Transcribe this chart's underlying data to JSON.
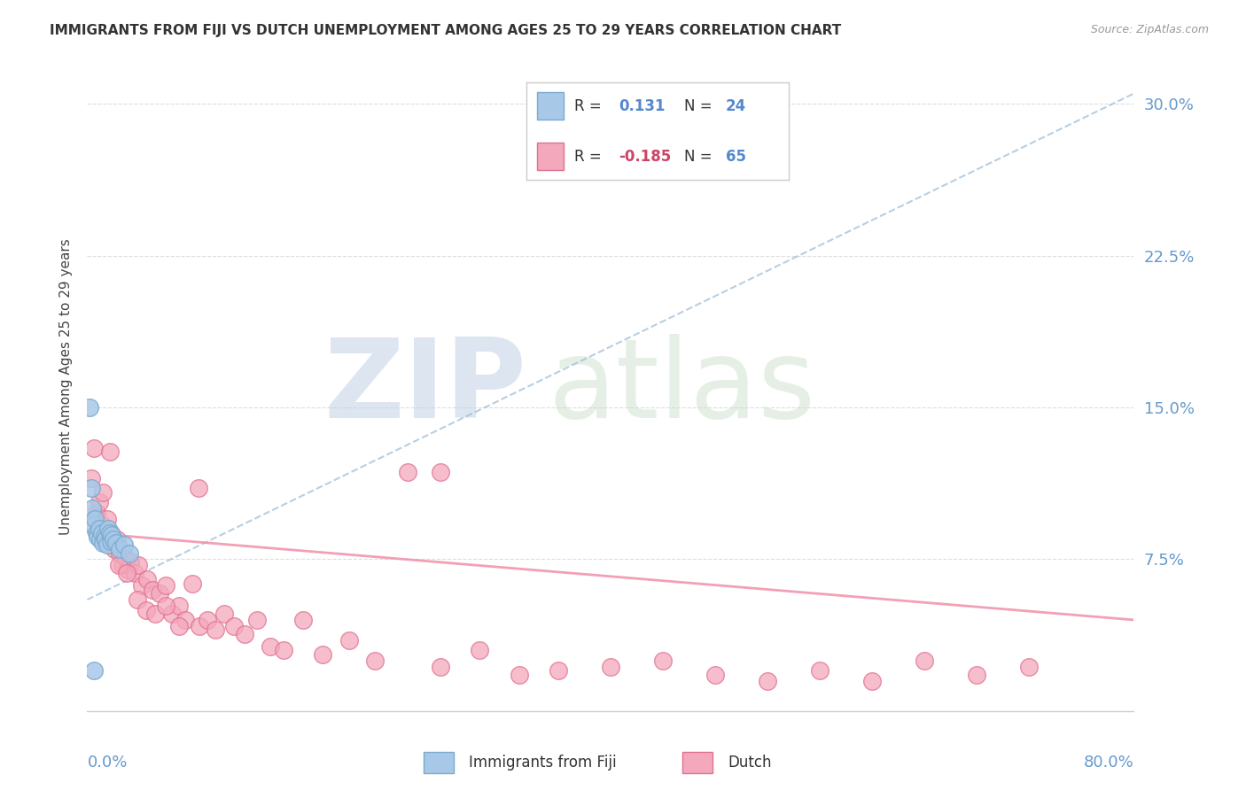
{
  "title": "IMMIGRANTS FROM FIJI VS DUTCH UNEMPLOYMENT AMONG AGES 25 TO 29 YEARS CORRELATION CHART",
  "source": "Source: ZipAtlas.com",
  "ylabel": "Unemployment Among Ages 25 to 29 years",
  "ytick_vals": [
    0.075,
    0.15,
    0.225,
    0.3
  ],
  "ytick_labels": [
    "7.5%",
    "15.0%",
    "22.5%",
    "30.0%"
  ],
  "xlim": [
    0.0,
    0.8
  ],
  "ylim": [
    0.0,
    0.32
  ],
  "fiji_color": "#a8c8e8",
  "fiji_edge_color": "#7aaace",
  "dutch_color": "#f4a8bc",
  "dutch_edge_color": "#e07090",
  "fiji_line_color": "#99bbd8",
  "dutch_line_color": "#f090a8",
  "fiji_R": "0.131",
  "fiji_N": "24",
  "dutch_R": "-0.185",
  "dutch_N": "65",
  "fiji_x": [
    0.002,
    0.003,
    0.004,
    0.005,
    0.006,
    0.007,
    0.008,
    0.009,
    0.01,
    0.011,
    0.012,
    0.013,
    0.014,
    0.015,
    0.016,
    0.017,
    0.018,
    0.019,
    0.02,
    0.022,
    0.025,
    0.028,
    0.032,
    0.005
  ],
  "fiji_y": [
    0.15,
    0.11,
    0.1,
    0.092,
    0.095,
    0.088,
    0.086,
    0.09,
    0.085,
    0.088,
    0.083,
    0.086,
    0.085,
    0.082,
    0.09,
    0.088,
    0.084,
    0.087,
    0.085,
    0.083,
    0.08,
    0.082,
    0.078,
    0.02
  ],
  "dutch_x": [
    0.003,
    0.005,
    0.007,
    0.009,
    0.011,
    0.013,
    0.015,
    0.017,
    0.019,
    0.021,
    0.023,
    0.025,
    0.027,
    0.029,
    0.031,
    0.033,
    0.036,
    0.039,
    0.042,
    0.046,
    0.05,
    0.055,
    0.06,
    0.065,
    0.07,
    0.075,
    0.08,
    0.086,
    0.092,
    0.098,
    0.105,
    0.112,
    0.12,
    0.13,
    0.14,
    0.15,
    0.165,
    0.18,
    0.2,
    0.22,
    0.245,
    0.27,
    0.3,
    0.33,
    0.36,
    0.4,
    0.44,
    0.48,
    0.52,
    0.56,
    0.6,
    0.64,
    0.68,
    0.72,
    0.012,
    0.018,
    0.024,
    0.03,
    0.038,
    0.045,
    0.052,
    0.06,
    0.07,
    0.085,
    0.27
  ],
  "dutch_y": [
    0.115,
    0.13,
    0.098,
    0.103,
    0.092,
    0.088,
    0.095,
    0.128,
    0.082,
    0.08,
    0.085,
    0.078,
    0.072,
    0.076,
    0.07,
    0.074,
    0.068,
    0.072,
    0.062,
    0.065,
    0.06,
    0.058,
    0.062,
    0.048,
    0.052,
    0.045,
    0.063,
    0.042,
    0.045,
    0.04,
    0.048,
    0.042,
    0.038,
    0.045,
    0.032,
    0.03,
    0.045,
    0.028,
    0.035,
    0.025,
    0.118,
    0.022,
    0.03,
    0.018,
    0.02,
    0.022,
    0.025,
    0.018,
    0.015,
    0.02,
    0.015,
    0.025,
    0.018,
    0.022,
    0.108,
    0.088,
    0.072,
    0.068,
    0.055,
    0.05,
    0.048,
    0.052,
    0.042,
    0.11,
    0.118
  ],
  "fiji_trend_x": [
    0.0,
    0.8
  ],
  "fiji_trend_y": [
    0.055,
    0.305
  ],
  "dutch_trend_x": [
    0.0,
    0.8
  ],
  "dutch_trend_y": [
    0.088,
    0.045
  ],
  "watermark_zip_color": "#c8d8ec",
  "watermark_atlas_color": "#dde8d8",
  "background_color": "#ffffff"
}
